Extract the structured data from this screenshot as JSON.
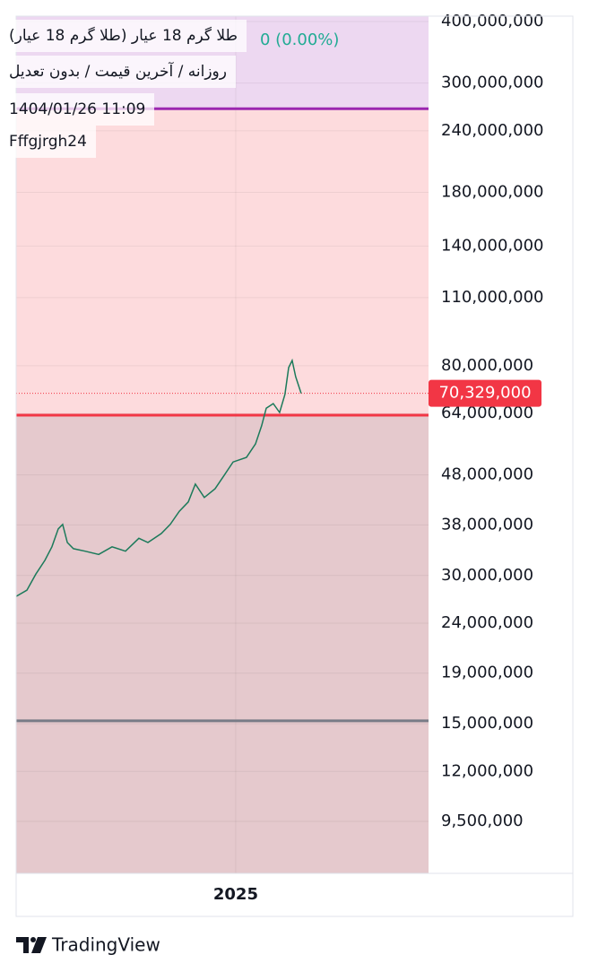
{
  "header": {
    "title": "طلا گرم 18 عیار (طلا گرم 18 عیار)",
    "change": "0 (0.00%)",
    "settings": "روزانه / آخرین قیمت / بدون تعدیل",
    "datetime": "1404/01/26 11:09",
    "user": "Fffgjrgh24"
  },
  "chart_data": {
    "type": "line",
    "log_scale": true,
    "grid": true,
    "series": [
      {
        "color": "#1b7a5a",
        "x": [
          2024.0,
          2024.049,
          2024.09,
          2024.131,
          2024.163,
          2024.192,
          2024.212,
          2024.233,
          2024.261,
          2024.314,
          2024.376,
          2024.437,
          2024.498,
          2024.559,
          2024.6,
          2024.661,
          2024.702,
          2024.743,
          2024.784,
          2024.816,
          2024.857,
          2024.906,
          2024.947,
          2024.988,
          2025.049,
          2025.09,
          2025.118,
          2025.139,
          2025.171,
          2025.2,
          2025.224,
          2025.241,
          2025.257,
          2025.273,
          2025.298
        ],
        "values": [
          27200000,
          28000000,
          30200000,
          32200000,
          34300000,
          37300000,
          38100000,
          35000000,
          34000000,
          33600000,
          33100000,
          34300000,
          33600000,
          35700000,
          35000000,
          36500000,
          38100000,
          40500000,
          42300000,
          46000000,
          43200000,
          45000000,
          47900000,
          51000000,
          52100000,
          55500000,
          60400000,
          65600000,
          67000000,
          64300000,
          69900000,
          79300000,
          82000000,
          76000000,
          70329000
        ]
      }
    ],
    "last_price": {
      "value": 70329000,
      "label": "70,329,000",
      "color": "#f23645"
    },
    "levels": [
      {
        "value": 266000000,
        "color": "#9c27b0"
      },
      {
        "value": 63500000,
        "color": "#f23645"
      },
      {
        "value": 15200000,
        "color": "#787b86"
      }
    ],
    "xlim": [
      2024.0,
      2025.878
    ],
    "xticks": [
      2025
    ],
    "ylim": [
      7450000,
      410200000
    ],
    "yticks": [
      {
        "value": 400000000,
        "label": "400,000,000"
      },
      {
        "value": 300000000,
        "label": "300,000,000"
      },
      {
        "value": 240000000,
        "label": "240,000,000"
      },
      {
        "value": 180000000,
        "label": "180,000,000"
      },
      {
        "value": 140000000,
        "label": "140,000,000"
      },
      {
        "value": 110000000,
        "label": "110,000,000"
      },
      {
        "value": 80000000,
        "label": "80,000,000"
      },
      {
        "value": 64000000,
        "label": "64,000,000"
      },
      {
        "value": 48000000,
        "label": "48,000,000"
      },
      {
        "value": 38000000,
        "label": "38,000,000"
      },
      {
        "value": 30000000,
        "label": "30,000,000"
      },
      {
        "value": 24000000,
        "label": "24,000,000"
      },
      {
        "value": 19000000,
        "label": "19,000,000"
      },
      {
        "value": 15000000,
        "label": "15,000,000"
      },
      {
        "value": 12000000,
        "label": "12,000,000"
      },
      {
        "value": 9500000,
        "label": "9,500,000"
      }
    ]
  },
  "footer": {
    "brand": "TradingView"
  }
}
